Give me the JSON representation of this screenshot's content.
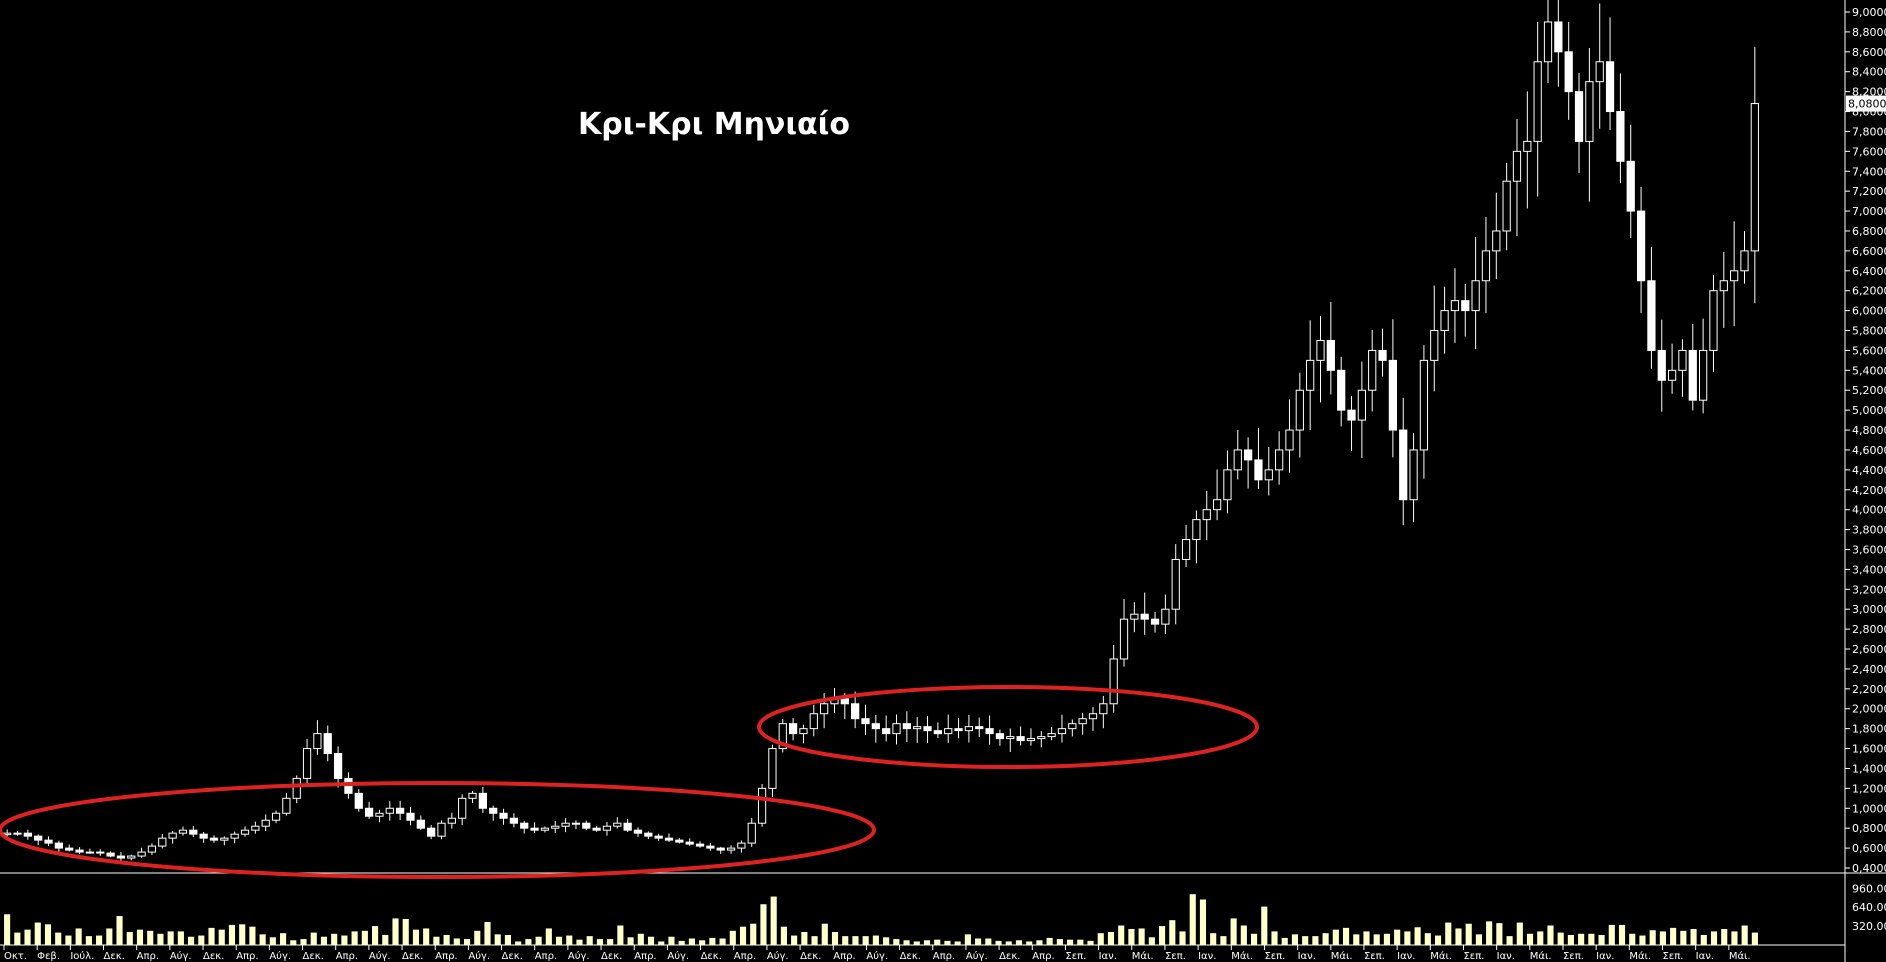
{
  "window": {
    "title": "Κρι-Κρι Μηνιαίο"
  },
  "colors": {
    "background": "#000000",
    "candle": "#ffffff",
    "volume": "#ffffcc",
    "ellipse": "#dd2222",
    "axis_text": "#ffffff",
    "price_tag_bg": "#ffffff"
  },
  "chart_data": {
    "type": "candlestick",
    "title": "Κρι-Κρι Μηνιαίο",
    "price_axis": {
      "min": 0.4,
      "max": 9.0,
      "step": 0.2,
      "tick_labels": [
        "0,4000",
        "0,6000",
        "0,8000",
        "1,0000",
        "1,2000",
        "1,4000",
        "1,6000",
        "1,8000",
        "2,0000",
        "2,2000",
        "2,4000",
        "2,6000",
        "2,8000",
        "3,0000",
        "3,2000",
        "3,4000",
        "3,6000",
        "3,8000",
        "4,0000",
        "4,2000",
        "4,4000",
        "4,6000",
        "4,8000",
        "5,0000",
        "5,2000",
        "5,4000",
        "5,6000",
        "5,8000",
        "6,0000",
        "6,2000",
        "6,4000",
        "6,6000",
        "6,8000",
        "7,0000",
        "7,2000",
        "7,4000",
        "7,6000",
        "7,8000",
        "8,0000",
        "8,2000",
        "8,4000",
        "8,6000",
        "8,8000",
        "9,0000"
      ]
    },
    "last_price": {
      "value": 8.08,
      "label": "8,0800"
    },
    "volume_axis": {
      "tick_labels": [
        "960.000",
        "640.000",
        "320.000"
      ],
      "ticks": [
        960000,
        640000,
        320000
      ],
      "max": 1100000
    },
    "x_labels": [
      "Οκτ.",
      "Φεβ.",
      "Ιούλ.",
      "Δεκ.",
      "Απρ.",
      "Αύγ.",
      "Δεκ.",
      "Απρ.",
      "Αύγ.",
      "Δεκ.",
      "Απρ.",
      "Αύγ.",
      "Δεκ.",
      "Απρ.",
      "Αύγ.",
      "Δεκ.",
      "Απρ.",
      "Αύγ.",
      "Δεκ.",
      "Απρ.",
      "Αύγ.",
      "Δεκ.",
      "Απρ.",
      "Αύγ.",
      "Δεκ.",
      "Απρ.",
      "Αύγ.",
      "Δεκ.",
      "Απρ.",
      "Αύγ.",
      "Δεκ.",
      "Απρ.",
      "Σεπ.",
      "Ιαν.",
      "Μάι.",
      "Σεπ.",
      "Ιαν.",
      "Μάι.",
      "Σεπ.",
      "Ιαν.",
      "Μάι.",
      "Σεπ.",
      "Ιαν.",
      "Μάι.",
      "Σεπ.",
      "Ιαν.",
      "Μάι.",
      "Σεπ.",
      "Ιαν.",
      "Μάι.",
      "Σεπ.",
      "Ιαν.",
      "Μάι."
    ],
    "close_path": [
      0.75,
      0.75,
      0.72,
      0.68,
      0.65,
      0.6,
      0.58,
      0.56,
      0.56,
      0.55,
      0.52,
      0.5,
      0.52,
      0.56,
      0.62,
      0.7,
      0.75,
      0.78,
      0.74,
      0.7,
      0.68,
      0.7,
      0.74,
      0.78,
      0.82,
      0.88,
      0.95,
      1.1,
      1.3,
      1.6,
      1.75,
      1.55,
      1.3,
      1.15,
      1.0,
      0.92,
      0.95,
      1.0,
      0.95,
      0.88,
      0.8,
      0.72,
      0.85,
      0.9,
      1.1,
      1.15,
      1.0,
      0.95,
      0.9,
      0.85,
      0.8,
      0.78,
      0.8,
      0.82,
      0.85,
      0.85,
      0.8,
      0.78,
      0.82,
      0.85,
      0.78,
      0.75,
      0.72,
      0.7,
      0.68,
      0.66,
      0.64,
      0.62,
      0.6,
      0.58,
      0.6,
      0.65,
      0.85,
      1.2,
      1.6,
      1.85,
      1.75,
      1.8,
      1.95,
      2.05,
      2.1,
      2.05,
      1.9,
      1.85,
      1.8,
      1.75,
      1.85,
      1.8,
      1.82,
      1.78,
      1.75,
      1.8,
      1.78,
      1.82,
      1.8,
      1.75,
      1.7,
      1.72,
      1.68,
      1.7,
      1.72,
      1.75,
      1.8,
      1.85,
      1.9,
      1.95,
      2.05,
      2.5,
      2.9,
      2.95,
      2.9,
      2.85,
      3.0,
      3.5,
      3.7,
      3.9,
      4.0,
      4.1,
      4.4,
      4.6,
      4.5,
      4.3,
      4.4,
      4.6,
      4.8,
      5.2,
      5.5,
      5.7,
      5.4,
      5.0,
      4.9,
      5.2,
      5.6,
      5.5,
      4.8,
      4.1,
      4.6,
      5.5,
      5.8,
      6.0,
      6.1,
      6.0,
      6.3,
      6.6,
      6.8,
      7.3,
      7.6,
      7.7,
      8.5,
      8.9,
      8.6,
      8.2,
      7.7,
      8.3,
      8.5,
      8.0,
      7.5,
      7.0,
      6.3,
      5.6,
      5.3,
      5.4,
      5.6,
      5.1,
      5.6,
      6.2,
      6.3,
      6.4,
      6.6,
      8.08
    ],
    "volume_values": [
      520000,
      210000,
      260000,
      380000,
      350000,
      210000,
      160000,
      280000,
      150000,
      160000,
      280000,
      490000,
      220000,
      260000,
      240000,
      190000,
      230000,
      230000,
      140000,
      160000,
      290000,
      260000,
      340000,
      350000,
      310000,
      180000,
      130000,
      200000,
      80000,
      100000,
      210000,
      140000,
      190000,
      160000,
      230000,
      240000,
      320000,
      170000,
      450000,
      440000,
      260000,
      280000,
      140000,
      170000,
      110000,
      100000,
      240000,
      390000,
      180000,
      170000,
      60000,
      100000,
      140000,
      280000,
      140000,
      160000,
      90000,
      150000,
      100000,
      100000,
      330000,
      130000,
      190000,
      140000,
      60000,
      140000,
      70000,
      110000,
      80000,
      120000,
      110000,
      240000,
      310000,
      360000,
      690000,
      820000,
      310000,
      160000,
      220000,
      150000,
      360000,
      220000,
      150000,
      150000,
      150000,
      160000,
      130000,
      100000,
      80000,
      60000,
      80000,
      90000,
      70000,
      60000,
      180000,
      110000,
      110000,
      70000,
      60000,
      80000,
      60000,
      80000,
      120000,
      100000,
      90000,
      90000,
      70000,
      200000,
      220000,
      330000,
      270000,
      280000,
      130000,
      320000,
      420000,
      230000,
      860000,
      770000,
      200000,
      150000,
      450000,
      330000,
      190000,
      650000,
      230000,
      120000,
      180000,
      150000,
      150000,
      200000,
      260000,
      290000,
      180000,
      230000,
      180000,
      190000,
      260000,
      230000,
      300000,
      200000,
      160000,
      380000,
      280000,
      360000,
      180000,
      400000,
      370000,
      150000,
      380000,
      190000,
      230000,
      330000,
      210000,
      170000,
      190000,
      190000,
      170000,
      340000,
      340000,
      190000,
      160000,
      250000,
      230000,
      290000,
      240000,
      270000,
      170000,
      230000,
      270000,
      230000,
      330000,
      210000
    ]
  }
}
